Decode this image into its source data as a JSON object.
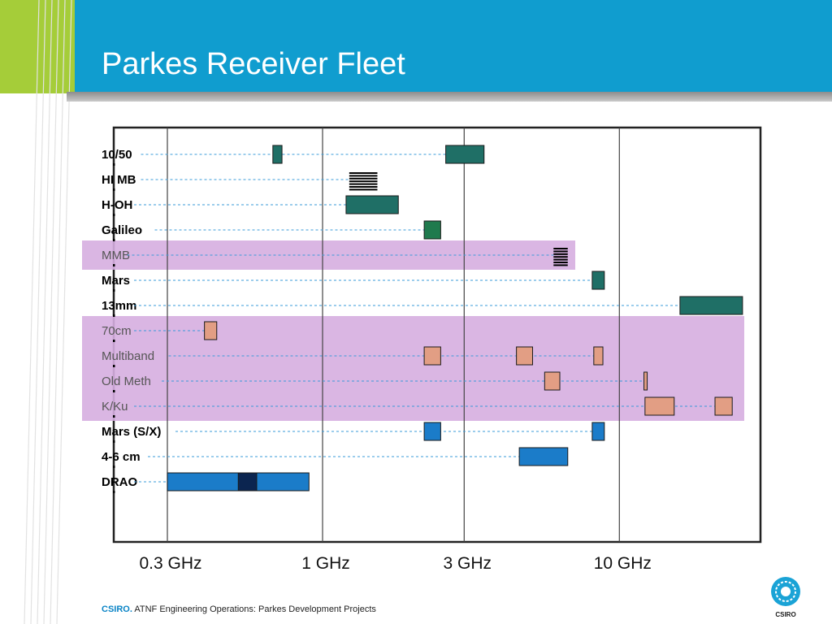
{
  "slide": {
    "title": "Parkes Receiver Fleet",
    "footer_brand": "CSIRO.",
    "footer_text": "ATNF Engineering Operations:  Parkes Development Projects",
    "logo_text": "CSIRO"
  },
  "colors": {
    "header_blue": "#109dcf",
    "accent_lime": "#a5cd39",
    "band_highlight": "#d6aee0",
    "teal": "#1f6f66",
    "green": "#1f7a4d",
    "salmon": "#e29e84",
    "blue": "#1b7cc9",
    "navy": "#0b2550"
  },
  "chart_data": {
    "type": "range",
    "x_scale": "log",
    "x_unit": "GHz",
    "x_ticks": [
      {
        "value": 0.3,
        "label": "0.3 GHz"
      },
      {
        "value": 1,
        "label": "1 GHz"
      },
      {
        "value": 3,
        "label": "3 GHz"
      },
      {
        "value": 10,
        "label": "10 GHz"
      }
    ],
    "highlight_groups": [
      {
        "rows": [
          "MMB"
        ]
      },
      {
        "rows": [
          "70cm",
          "Multiband",
          "Old Meth",
          "K/Ku"
        ]
      }
    ],
    "rows": [
      {
        "label": "10/50",
        "bold": true,
        "bands": [
          {
            "from": 0.68,
            "to": 0.73,
            "color": "teal"
          },
          {
            "from": 2.6,
            "to": 3.5,
            "color": "teal"
          }
        ]
      },
      {
        "label": "HI MB",
        "bold": true,
        "bands": [
          {
            "from": 1.23,
            "to": 1.53,
            "color": "black",
            "pattern": "lines"
          }
        ]
      },
      {
        "label": "H-OH",
        "bold": true,
        "bands": [
          {
            "from": 1.2,
            "to": 1.8,
            "color": "teal"
          }
        ]
      },
      {
        "label": "Galileo",
        "bold": true,
        "bands": [
          {
            "from": 2.2,
            "to": 2.5,
            "color": "green"
          }
        ]
      },
      {
        "label": "MMB",
        "bold": false,
        "bands": [
          {
            "from": 6.0,
            "to": 6.7,
            "color": "black",
            "pattern": "lines"
          }
        ]
      },
      {
        "label": "Mars",
        "bold": true,
        "bands": [
          {
            "from": 8.1,
            "to": 8.9,
            "color": "teal"
          }
        ]
      },
      {
        "label": "13mm",
        "bold": true,
        "bands": [
          {
            "from": 16,
            "to": 26,
            "color": "teal"
          }
        ]
      },
      {
        "label": "70cm",
        "bold": false,
        "bands": [
          {
            "from": 0.4,
            "to": 0.44,
            "color": "salmon"
          }
        ]
      },
      {
        "label": "Multiband",
        "bold": false,
        "bands": [
          {
            "from": 2.2,
            "to": 2.5,
            "color": "salmon"
          },
          {
            "from": 4.5,
            "to": 5.1,
            "color": "salmon"
          },
          {
            "from": 8.2,
            "to": 8.8,
            "color": "salmon"
          }
        ]
      },
      {
        "label": "Old Meth",
        "bold": false,
        "bands": [
          {
            "from": 5.6,
            "to": 6.3,
            "color": "salmon"
          },
          {
            "from": 12.1,
            "to": 12.3,
            "color": "salmon"
          }
        ]
      },
      {
        "label": "K/Ku",
        "bold": false,
        "bands": [
          {
            "from": 12.2,
            "to": 15.3,
            "color": "salmon"
          },
          {
            "from": 21,
            "to": 24,
            "color": "salmon"
          }
        ]
      },
      {
        "label": "Mars (S/X)",
        "bold": true,
        "bands": [
          {
            "from": 2.2,
            "to": 2.5,
            "color": "blue"
          },
          {
            "from": 8.1,
            "to": 8.9,
            "color": "blue"
          }
        ]
      },
      {
        "label": "4-6 cm",
        "bold": true,
        "bands": [
          {
            "from": 4.6,
            "to": 6.7,
            "color": "blue"
          }
        ]
      },
      {
        "label": "DRAO",
        "bold": true,
        "bands": [
          {
            "from": 0.3,
            "to": 0.9,
            "color": "blue"
          },
          {
            "from": 0.52,
            "to": 0.6,
            "color": "navy"
          }
        ]
      }
    ]
  }
}
